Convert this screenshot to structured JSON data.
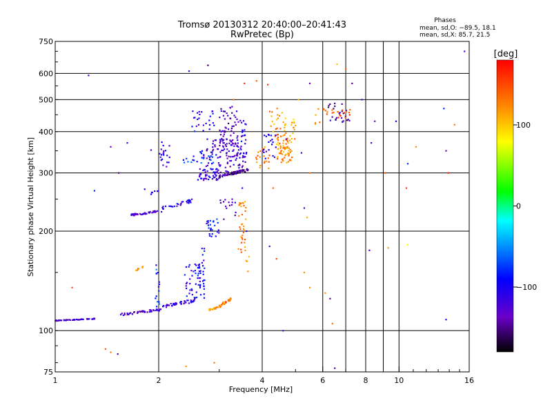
{
  "chart_data": {
    "type": "scatter",
    "title": "Tromsø 20130312 20:40:00–20:41:43",
    "subtitle": "RwPretec (Bp)",
    "xlabel": "Frequency [MHz]",
    "ylabel": "Stationary phase Virtual Height [km]",
    "x_scale": "log",
    "y_scale": "log",
    "xlim": [
      1,
      16
    ],
    "ylim": [
      75,
      750
    ],
    "x_ticks": [
      1,
      2,
      4,
      6,
      8,
      10,
      16
    ],
    "x_tick_labels": [
      "1",
      "2",
      "4",
      "6",
      "8",
      "10",
      "16"
    ],
    "x_grid_extra": [
      7,
      9
    ],
    "y_ticks": [
      75,
      100,
      200,
      300,
      400,
      500,
      600,
      750
    ],
    "y_tick_labels": [
      "75",
      "100",
      "200",
      "300",
      "400",
      "500",
      "600",
      "750"
    ],
    "grid": true,
    "info": {
      "header": "Phases",
      "line1": "mean, sd,O: −89.5, 18.1",
      "line2": "mean, sd,X: 85.7, 21.5"
    },
    "colorbar": {
      "label": "[deg]",
      "range": [
        -180,
        180
      ],
      "tick_values": [
        100,
        0,
        -100
      ],
      "tick_labels": [
        "100",
        "0",
        "−100"
      ]
    },
    "series": [
      {
        "x_range": [
          1.0,
          1.32
        ],
        "y": [
          107,
          109
        ],
        "phase": -130,
        "n": 55
      },
      {
        "x_range": [
          1.55,
          2.05
        ],
        "y": [
          111,
          117
        ],
        "phase": -130,
        "n": 45
      },
      {
        "x_range": [
          2.05,
          2.55
        ],
        "y": [
          117,
          125
        ],
        "phase": -120,
        "n": 40
      },
      {
        "x_range": [
          2.38,
          2.65
        ],
        "y": [
          120,
          160
        ],
        "phase": -110,
        "n": 45
      },
      {
        "x_range": [
          2.6,
          2.72
        ],
        "y": [
          125,
          180
        ],
        "phase": -110,
        "n": 30
      },
      {
        "x_range": [
          1.95,
          2.05
        ],
        "y": [
          118,
          160
        ],
        "phase": -90,
        "n": 15
      },
      {
        "x_range": [
          2.8,
          3.05
        ],
        "y": [
          115,
          119
        ],
        "phase": 120,
        "n": 25
      },
      {
        "x_range": [
          3.0,
          3.25
        ],
        "y": [
          118,
          126
        ],
        "phase": 130,
        "n": 25
      },
      {
        "x_range": [
          1.7,
          1.8
        ],
        "y": [
          150,
          158
        ],
        "phase": 120,
        "n": 10
      },
      {
        "x_range": [
          1.65,
          2.05
        ],
        "y": [
          222,
          232
        ],
        "phase": -130,
        "n": 40
      },
      {
        "x_range": [
          2.05,
          2.5
        ],
        "y": [
          232,
          250
        ],
        "phase": -120,
        "n": 30
      },
      {
        "x_range": [
          2.75,
          3.0
        ],
        "y": [
          192,
          218
        ],
        "phase": -100,
        "n": 25
      },
      {
        "x_range": [
          3.0,
          3.4
        ],
        "y": [
          215,
          250
        ],
        "phase": -140,
        "n": 15
      },
      {
        "x_range": [
          3.4,
          3.6
        ],
        "y": [
          172,
          248
        ],
        "phase": 130,
        "n": 30
      },
      {
        "x_range": [
          2.6,
          3.0
        ],
        "y": [
          285,
          310
        ],
        "phase": -120,
        "n": 45
      },
      {
        "x_range": [
          3.0,
          3.65
        ],
        "y": [
          290,
          310
        ],
        "phase": -150,
        "n": 70
      },
      {
        "x_range": [
          2.7,
          3.6
        ],
        "y": [
          300,
          380
        ],
        "phase": -130,
        "n": 110
      },
      {
        "x_range": [
          3.0,
          3.4
        ],
        "y": [
          360,
          480
        ],
        "phase": -140,
        "n": 60
      },
      {
        "x_range": [
          3.4,
          3.6
        ],
        "y": [
          330,
          440
        ],
        "phase": -120,
        "n": 25
      },
      {
        "x_range": [
          2.35,
          2.9
        ],
        "y": [
          320,
          350
        ],
        "phase": -90,
        "n": 25
      },
      {
        "x_range": [
          2.5,
          2.9
        ],
        "y": [
          400,
          470
        ],
        "phase": -110,
        "n": 25
      },
      {
        "x_range": [
          2.0,
          2.15
        ],
        "y": [
          310,
          375
        ],
        "phase": -120,
        "n": 20
      },
      {
        "x_range": [
          3.8,
          4.2
        ],
        "y": [
          310,
          360
        ],
        "phase": 130,
        "n": 20
      },
      {
        "x_range": [
          4.4,
          4.9
        ],
        "y": [
          320,
          390
        ],
        "phase": 120,
        "n": 70
      },
      {
        "x_range": [
          4.6,
          5.0
        ],
        "y": [
          380,
          440
        ],
        "phase": 110,
        "n": 20
      },
      {
        "x_range": [
          4.2,
          4.6
        ],
        "y": [
          380,
          470
        ],
        "phase": 120,
        "n": 20
      },
      {
        "x_range": [
          4.0,
          4.4
        ],
        "y": [
          330,
          400
        ],
        "phase": -120,
        "n": 20
      },
      {
        "x_range": [
          6.2,
          7.2
        ],
        "y": [
          425,
          490
        ],
        "phase": -140,
        "n": 25
      },
      {
        "x_range": [
          6.3,
          7.2
        ],
        "y": [
          440,
          470
        ],
        "phase": 150,
        "n": 15
      },
      {
        "x_range": [
          5.5,
          6.2
        ],
        "y": [
          420,
          470
        ],
        "phase": 130,
        "n": 10
      },
      {
        "x_range": [
          3.5,
          3.7
        ],
        "y": [
          150,
          200
        ],
        "phase": 120,
        "n": 8
      },
      {
        "x_range": [
          1.8,
          2.0
        ],
        "y": [
          250,
          270
        ],
        "phase": -110,
        "n": 6
      }
    ],
    "scattered_points": [
      [
        1.12,
        135,
        150
      ],
      [
        1.45,
        360,
        -140
      ],
      [
        1.62,
        370,
        -120
      ],
      [
        1.3,
        265,
        -90
      ],
      [
        1.53,
        300,
        -150
      ],
      [
        1.82,
        268,
        -110
      ],
      [
        1.9,
        352,
        -130
      ],
      [
        1.4,
        88,
        140
      ],
      [
        1.52,
        85,
        -150
      ],
      [
        1.45,
        86,
        130
      ],
      [
        1.25,
        592,
        -130
      ],
      [
        2.45,
        610,
        -120
      ],
      [
        2.78,
        635,
        -160
      ],
      [
        3.3,
        500,
        130
      ],
      [
        3.55,
        560,
        160
      ],
      [
        3.85,
        570,
        140
      ],
      [
        4.15,
        555,
        160
      ],
      [
        4.42,
        470,
        130
      ],
      [
        5.1,
        500,
        110
      ],
      [
        5.5,
        560,
        -140
      ],
      [
        5.2,
        345,
        -130
      ],
      [
        5.5,
        300,
        130
      ],
      [
        5.3,
        235,
        -120
      ],
      [
        5.4,
        220,
        110
      ],
      [
        4.2,
        180,
        -130
      ],
      [
        4.4,
        165,
        150
      ],
      [
        4.6,
        100,
        -130
      ],
      [
        5.3,
        150,
        120
      ],
      [
        5.5,
        135,
        120
      ],
      [
        6.1,
        130,
        120
      ],
      [
        6.3,
        125,
        -150
      ],
      [
        6.6,
        640,
        100
      ],
      [
        7.0,
        620,
        140
      ],
      [
        7.3,
        560,
        -150
      ],
      [
        7.8,
        500,
        -130
      ],
      [
        8.5,
        430,
        -140
      ],
      [
        8.3,
        370,
        -130
      ],
      [
        9.1,
        300,
        140
      ],
      [
        9.8,
        430,
        -110
      ],
      [
        10.5,
        270,
        160
      ],
      [
        10.6,
        320,
        -90
      ],
      [
        11.2,
        360,
        120
      ],
      [
        13.5,
        470,
        -90
      ],
      [
        13.7,
        350,
        -140
      ],
      [
        13.9,
        300,
        170
      ],
      [
        14.5,
        420,
        130
      ],
      [
        13.7,
        108,
        -110
      ],
      [
        8.2,
        175,
        -130
      ],
      [
        9.3,
        178,
        120
      ],
      [
        10.6,
        182,
        80
      ],
      [
        2.9,
        80,
        130
      ],
      [
        3.6,
        200,
        -120
      ],
      [
        3.5,
        270,
        -120
      ],
      [
        4.7,
        380,
        -140
      ],
      [
        6.5,
        77,
        -150
      ],
      [
        2.4,
        78,
        120
      ],
      [
        15.5,
        700,
        -130
      ],
      [
        6.4,
        105,
        130
      ],
      [
        4.3,
        270,
        140
      ]
    ]
  }
}
